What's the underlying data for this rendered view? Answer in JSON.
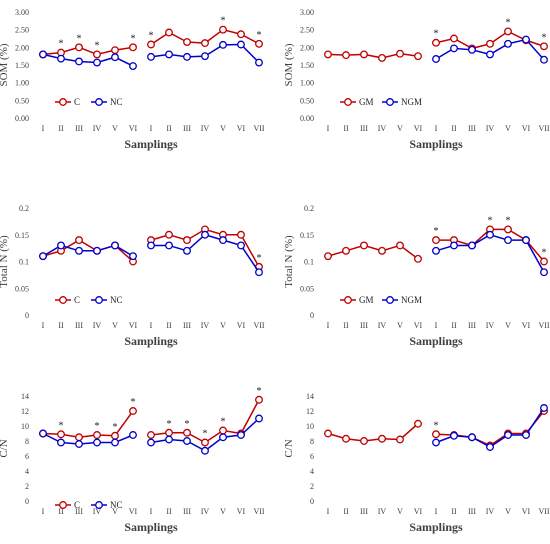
{
  "chart_data": [
    {
      "type": "line",
      "ylabel": "SOM (%)",
      "xlabel": "Samplings",
      "ylim": [
        0,
        3
      ],
      "ytick_labels": [
        "0.00",
        "0.50",
        "1.00",
        "1.50",
        "2.00",
        "2.50",
        "3.00"
      ],
      "groups": [
        {
          "categories": [
            "I",
            "II",
            "III",
            "IV",
            "V",
            "VI"
          ],
          "series": [
            {
              "name": "C",
              "color": "#c00000",
              "values": [
                1.8,
                1.85,
                2.0,
                1.8,
                1.92,
                2.0
              ]
            },
            {
              "name": "NC",
              "color": "#0000cc",
              "values": [
                1.8,
                1.68,
                1.6,
                1.57,
                1.72,
                1.47
              ]
            }
          ],
          "stars": [
            "",
            "*",
            "*",
            "*",
            "",
            "*"
          ]
        },
        {
          "categories": [
            "I",
            "II",
            "III",
            "IV",
            "V",
            "VI",
            "VII"
          ],
          "series": [
            {
              "values": [
                2.08,
                2.42,
                2.15,
                2.12,
                2.5,
                2.37,
                2.1
              ]
            },
            {
              "values": [
                1.73,
                1.8,
                1.73,
                1.75,
                2.07,
                2.08,
                1.57
              ]
            }
          ],
          "stars": [
            "*",
            "",
            "",
            "",
            "*",
            "",
            "*"
          ]
        }
      ],
      "legend": [
        {
          "label": "C",
          "color": "#c00000"
        },
        {
          "label": "NC",
          "color": "#0000cc"
        }
      ]
    },
    {
      "type": "line",
      "ylabel": "SOM (%)",
      "xlabel": "Samplings",
      "ylim": [
        0,
        3
      ],
      "ytick_labels": [
        "0.00",
        "0.50",
        "1.00",
        "1.50",
        "2.00",
        "2.50",
        "3.00"
      ],
      "groups": [
        {
          "categories": [
            "I",
            "II",
            "III",
            "IV",
            "V",
            "VI"
          ],
          "series": [
            {
              "name": "GM",
              "color": "#c00000",
              "values": [
                1.8,
                1.78,
                1.8,
                1.7,
                1.82,
                1.75
              ]
            },
            {
              "name": "NGM",
              "color": "#0000cc",
              "values": [
                null,
                null,
                null,
                null,
                null,
                null
              ]
            }
          ],
          "stars": [
            "",
            "",
            "",
            "",
            "",
            ""
          ]
        },
        {
          "categories": [
            "I",
            "II",
            "III",
            "IV",
            "V",
            "VI",
            "VII"
          ],
          "series": [
            {
              "values": [
                2.13,
                2.25,
                1.97,
                2.1,
                2.45,
                2.2,
                2.03
              ]
            },
            {
              "values": [
                1.67,
                1.97,
                1.93,
                1.8,
                2.1,
                2.22,
                1.65
              ]
            }
          ],
          "stars": [
            "*",
            "",
            "",
            "",
            "*",
            "",
            "*"
          ]
        }
      ],
      "legend": [
        {
          "label": "GM",
          "color": "#c00000"
        },
        {
          "label": "NGM",
          "color": "#0000cc"
        }
      ]
    },
    {
      "type": "line",
      "ylabel": "Total N (%)",
      "xlabel": "Samplings",
      "ylim": [
        0,
        0.2
      ],
      "ytick_labels": [
        "0",
        "0.05",
        "0.1",
        "0.15",
        "0.2"
      ],
      "groups": [
        {
          "categories": [
            "I",
            "II",
            "III",
            "IV",
            "V",
            "VI"
          ],
          "series": [
            {
              "name": "C",
              "color": "#c00000",
              "values": [
                0.11,
                0.12,
                0.14,
                0.12,
                0.13,
                0.1
              ]
            },
            {
              "name": "NC",
              "color": "#0000cc",
              "values": [
                0.11,
                0.13,
                0.12,
                0.12,
                0.13,
                0.11
              ]
            }
          ],
          "stars": [
            "",
            "",
            "",
            "",
            "",
            ""
          ]
        },
        {
          "categories": [
            "I",
            "II",
            "III",
            "IV",
            "V",
            "VI",
            "VII"
          ],
          "series": [
            {
              "values": [
                0.14,
                0.15,
                0.14,
                0.16,
                0.15,
                0.15,
                0.09
              ]
            },
            {
              "values": [
                0.13,
                0.13,
                0.12,
                0.15,
                0.14,
                0.13,
                0.08
              ]
            }
          ],
          "stars": [
            "",
            "",
            "",
            "",
            "",
            "",
            "*"
          ]
        }
      ],
      "legend": [
        {
          "label": "C",
          "color": "#c00000"
        },
        {
          "label": "NC",
          "color": "#0000cc"
        }
      ]
    },
    {
      "type": "line",
      "ylabel": "Total N (%)",
      "xlabel": "Samplings",
      "ylim": [
        0,
        0.2
      ],
      "ytick_labels": [
        "0",
        "0.05",
        "0.1",
        "0.15",
        "0.2"
      ],
      "groups": [
        {
          "categories": [
            "I",
            "II",
            "III",
            "IV",
            "V",
            "VI"
          ],
          "series": [
            {
              "name": "GM",
              "color": "#c00000",
              "values": [
                0.11,
                0.12,
                0.13,
                0.12,
                0.13,
                0.105
              ]
            },
            {
              "name": "NGM",
              "color": "#0000cc",
              "values": [
                null,
                null,
                null,
                null,
                null,
                null
              ]
            }
          ],
          "stars": [
            "",
            "",
            "",
            "",
            "",
            ""
          ]
        },
        {
          "categories": [
            "I",
            "II",
            "III",
            "IV",
            "V",
            "VI",
            "VII"
          ],
          "series": [
            {
              "values": [
                0.14,
                0.14,
                0.13,
                0.16,
                0.16,
                0.14,
                0.1
              ]
            },
            {
              "values": [
                0.12,
                0.13,
                0.13,
                0.15,
                0.14,
                0.14,
                0.08
              ]
            }
          ],
          "stars": [
            "*",
            "",
            "",
            "*",
            "*",
            "",
            "*"
          ]
        }
      ],
      "legend": [
        {
          "label": "GM",
          "color": "#c00000"
        },
        {
          "label": "NGM",
          "color": "#0000cc"
        }
      ]
    },
    {
      "type": "line",
      "ylabel": "C/N",
      "xlabel": "Samplings",
      "ylim": [
        0,
        14
      ],
      "ytick_labels": [
        "0",
        "2",
        "4",
        "6",
        "8",
        "10",
        "12",
        "14"
      ],
      "groups": [
        {
          "categories": [
            "I",
            "II",
            "III",
            "IV",
            "V",
            "VI"
          ],
          "series": [
            {
              "name": "C",
              "color": "#c00000",
              "values": [
                9.0,
                8.9,
                8.5,
                8.8,
                8.7,
                12.0
              ]
            },
            {
              "name": "NC",
              "color": "#0000cc",
              "values": [
                9.0,
                7.8,
                7.6,
                7.8,
                7.8,
                8.8
              ]
            }
          ],
          "stars": [
            "",
            "*",
            "",
            "*",
            "*",
            "*"
          ]
        },
        {
          "categories": [
            "I",
            "II",
            "III",
            "IV",
            "V",
            "VI",
            "VII"
          ],
          "series": [
            {
              "values": [
                8.8,
                9.1,
                9.1,
                7.8,
                9.4,
                9.0,
                13.5
              ]
            },
            {
              "values": [
                7.8,
                8.2,
                8.0,
                6.7,
                8.5,
                8.8,
                11.0
              ]
            }
          ],
          "stars": [
            "",
            "*",
            "*",
            "*",
            "*",
            "",
            "*"
          ]
        }
      ],
      "legend": [
        {
          "label": "C",
          "color": "#c00000"
        },
        {
          "label": "NC",
          "color": "#0000cc"
        }
      ]
    },
    {
      "type": "line",
      "ylabel": "C/N",
      "xlabel": "Samplings",
      "ylim": [
        0,
        14
      ],
      "ytick_labels": [
        "0",
        "2",
        "4",
        "6",
        "8",
        "10",
        "12",
        "14"
      ],
      "groups": [
        {
          "categories": [
            "I",
            "II",
            "III",
            "IV",
            "V",
            "VI"
          ],
          "series": [
            {
              "name": "GM",
              "color": "#c00000",
              "values": [
                9.0,
                8.3,
                8.0,
                8.3,
                8.2,
                10.3
              ]
            },
            {
              "name": "NGM",
              "color": "#0000cc",
              "values": [
                null,
                null,
                null,
                null,
                null,
                null
              ]
            }
          ],
          "stars": [
            "",
            "",
            "",
            "",
            "",
            ""
          ]
        },
        {
          "categories": [
            "I",
            "II",
            "III",
            "IV",
            "V",
            "VI",
            "VII"
          ],
          "series": [
            {
              "values": [
                8.9,
                8.8,
                8.5,
                7.4,
                9.0,
                9.0,
                12.0
              ]
            },
            {
              "values": [
                7.8,
                8.7,
                8.5,
                7.2,
                8.8,
                8.8,
                12.4
              ]
            }
          ],
          "stars": [
            "*",
            "",
            "",
            "",
            "",
            "",
            ""
          ]
        }
      ],
      "legend": []
    }
  ]
}
